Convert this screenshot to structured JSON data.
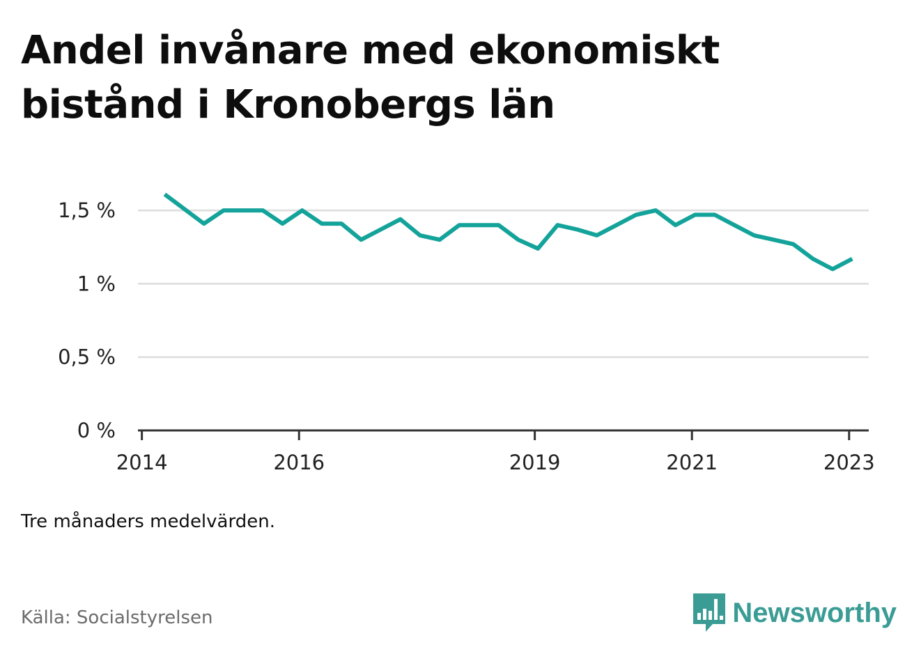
{
  "header": {
    "title": "Andel invånare med ekonomiskt bistånd i Kronobergs län"
  },
  "footer": {
    "note": "Tre månaders medelvärden.",
    "source": "Källa: Socialstyrelsen",
    "brand": "Newsworthy",
    "brand_icon": "bar-chart-speech-bubble-icon"
  },
  "colors": {
    "line": "#14a39a",
    "grid": "#dcdcdc",
    "axis": "#333333",
    "brand": "#3a9c94"
  },
  "chart_data": {
    "type": "line",
    "title": "Andel invånare med ekonomiskt bistånd i Kronobergs län",
    "xlabel": "",
    "ylabel": "",
    "ylim": [
      0,
      1.7
    ],
    "xlim": [
      2013.95,
      2023.25
    ],
    "yticks": [
      0,
      0.5,
      1,
      1.5
    ],
    "ytick_labels": [
      "0 %",
      "0,5 %",
      "1 %",
      "1,5 %"
    ],
    "xticks": [
      2014,
      2016,
      2019,
      2021,
      2023
    ],
    "xtick_labels": [
      "2014",
      "2016",
      "2019",
      "2021",
      "2023"
    ],
    "grid": true,
    "legend": "none",
    "series": [
      {
        "x": [
          2014.29,
          2014.54,
          2014.79,
          2015.04,
          2015.29,
          2015.54,
          2015.79,
          2016.04,
          2016.29,
          2016.54,
          2016.79,
          2017.04,
          2017.29,
          2017.54,
          2017.79,
          2018.04,
          2018.29,
          2018.54,
          2018.79,
          2019.04,
          2019.29,
          2019.54,
          2019.79,
          2020.04,
          2020.29,
          2020.54,
          2020.79,
          2021.04,
          2021.29,
          2021.54,
          2021.79,
          2022.04,
          2022.29,
          2022.54,
          2022.79,
          2023.04
        ],
        "values": [
          1.61,
          1.51,
          1.41,
          1.5,
          1.5,
          1.5,
          1.41,
          1.5,
          1.41,
          1.41,
          1.3,
          1.37,
          1.44,
          1.33,
          1.3,
          1.4,
          1.4,
          1.4,
          1.3,
          1.24,
          1.4,
          1.37,
          1.33,
          1.4,
          1.47,
          1.5,
          1.4,
          1.47,
          1.47,
          1.4,
          1.33,
          1.3,
          1.27,
          1.17,
          1.1,
          1.17
        ]
      }
    ]
  }
}
